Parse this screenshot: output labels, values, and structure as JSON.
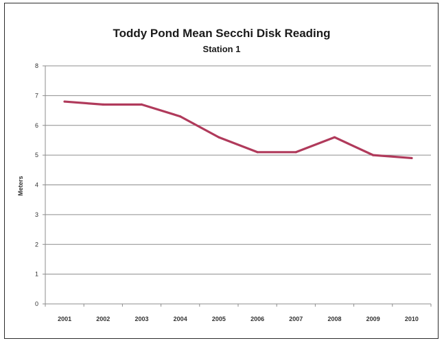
{
  "chart_data": {
    "type": "line",
    "title": "Toddy Pond Mean Secchi Disk Reading",
    "subtitle": "Station 1",
    "xlabel": "",
    "ylabel": "Meters",
    "categories": [
      "2001",
      "2002",
      "2003",
      "2004",
      "2005",
      "2006",
      "2007",
      "2008",
      "2009",
      "2010"
    ],
    "series": [
      {
        "values": [
          6.8,
          6.7,
          6.7,
          6.3,
          5.6,
          5.1,
          5.1,
          5.6,
          5.0,
          4.9
        ]
      }
    ],
    "ylim": [
      0,
      8
    ],
    "yticks": [
      "0",
      "1",
      "2",
      "3",
      "4",
      "5",
      "6",
      "7",
      "8"
    ],
    "grid": true,
    "legend": "none",
    "line_color": "#b03a5b",
    "grid_color": "#8c8c8c"
  }
}
